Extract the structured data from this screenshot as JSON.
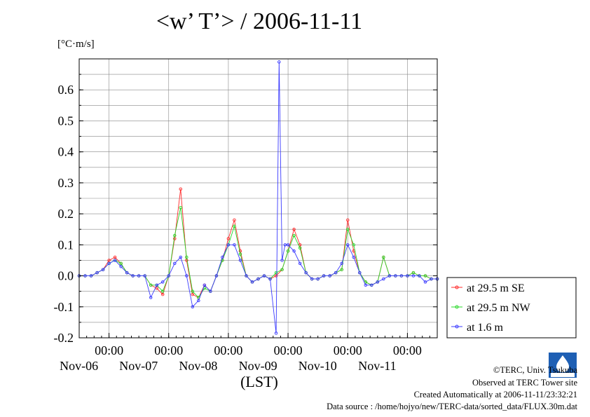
{
  "title": "<w’ T’> / 2006-11-11",
  "y_unit": "[°C·m/s]",
  "x_unit": "(LST)",
  "credits": {
    "line1": "©TERC, Univ. Tsukuba",
    "line2": "Observed at TERC Tower site",
    "line3": "Created Automatically at 2006-11-11/23:32:21",
    "line4": "Data source : /home/hojyo/new/TERC-data/sorted_data/FLUX.30m.dat"
  },
  "logo_text": "TERC",
  "colors": {
    "se": "#ff2a2a",
    "nw": "#2ad82a",
    "low": "#3a3aff",
    "grid": "#888888"
  },
  "chart_data": {
    "type": "line",
    "title": "<w’ T’> / 2006-11-11",
    "ylabel": "[°C·m/s]",
    "xlabel": "(LST)",
    "ylim": [
      -0.2,
      0.7
    ],
    "yticks": [
      -0.2,
      -0.1,
      0.0,
      0.1,
      0.2,
      0.3,
      0.4,
      0.5,
      0.6
    ],
    "y_tick_labels": [
      "-0.2",
      "-0.1",
      "0.0",
      "0.1",
      "0.2",
      "0.3",
      "0.4",
      "0.5",
      "0.6"
    ],
    "xlim": [
      0,
      6
    ],
    "x_units_note": "days from 2006-11-05 12:00",
    "x_major_ticks": [
      0.5,
      1.5,
      2.5,
      3.5,
      4.5,
      5.5
    ],
    "x_major_labels": [
      "00:00",
      "00:00",
      "00:00",
      "00:00",
      "00:00",
      "00:00"
    ],
    "x_day_positions": [
      0.5,
      1.5,
      2.5,
      3.5,
      4.5,
      5.5
    ],
    "x_day_labels": [
      "Nov-06",
      "Nov-07",
      "Nov-08",
      "Nov-09",
      "Nov-10",
      "Nov-11"
    ],
    "grid": true,
    "legend_position": "right",
    "series": [
      {
        "name": "at 29.5 m SE",
        "color": "#ff2a2a",
        "x": [
          0.0,
          0.1,
          0.2,
          0.3,
          0.4,
          0.5,
          0.6,
          0.7,
          0.8,
          0.9,
          1.0,
          1.1,
          1.2,
          1.3,
          1.4,
          1.5,
          1.6,
          1.7,
          1.8,
          1.9,
          2.0,
          2.1,
          2.2,
          2.3,
          2.4,
          2.5,
          2.6,
          2.7,
          2.8,
          2.9,
          3.0,
          3.1,
          3.2,
          3.3,
          3.4,
          3.5,
          3.6,
          3.7,
          3.8,
          3.9,
          4.0,
          4.1,
          4.2,
          4.3,
          4.4,
          4.5,
          4.6,
          4.7,
          4.8,
          4.9,
          5.0,
          5.1,
          5.2,
          5.3,
          5.4,
          5.5,
          5.6,
          5.7,
          5.8,
          5.9,
          6.0
        ],
        "y": [
          0.0,
          0.0,
          0.0,
          0.01,
          0.02,
          0.05,
          0.06,
          0.04,
          0.01,
          0.0,
          0.0,
          0.0,
          -0.03,
          -0.04,
          -0.06,
          0.0,
          0.12,
          0.28,
          0.05,
          -0.06,
          -0.07,
          -0.03,
          -0.05,
          0.0,
          0.05,
          0.12,
          0.18,
          0.08,
          0.0,
          -0.02,
          -0.01,
          0.0,
          -0.01,
          0.0,
          0.02,
          0.08,
          0.15,
          0.1,
          0.01,
          -0.01,
          -0.01,
          0.0,
          0.0,
          0.01,
          0.02,
          0.18,
          0.08,
          0.01,
          -0.02,
          -0.03,
          -0.02,
          0.06,
          0.0,
          0.0,
          0.0,
          0.0,
          0.01,
          0.0,
          0.0,
          -0.01,
          -0.01
        ]
      },
      {
        "name": "at 29.5 m NW",
        "color": "#2ad82a",
        "x": [
          0.0,
          0.1,
          0.2,
          0.3,
          0.4,
          0.5,
          0.6,
          0.7,
          0.8,
          0.9,
          1.0,
          1.1,
          1.2,
          1.3,
          1.4,
          1.5,
          1.6,
          1.7,
          1.8,
          1.9,
          2.0,
          2.1,
          2.2,
          2.3,
          2.4,
          2.5,
          2.6,
          2.7,
          2.8,
          2.9,
          3.0,
          3.1,
          3.2,
          3.3,
          3.4,
          3.5,
          3.6,
          3.7,
          3.8,
          3.9,
          4.0,
          4.1,
          4.2,
          4.3,
          4.4,
          4.5,
          4.6,
          4.7,
          4.8,
          4.9,
          5.0,
          5.1,
          5.2,
          5.3,
          5.4,
          5.5,
          5.6,
          5.7,
          5.8,
          5.9,
          6.0
        ],
        "y": [
          0.0,
          0.0,
          0.0,
          0.01,
          0.02,
          0.04,
          0.05,
          0.04,
          0.01,
          0.0,
          0.0,
          0.0,
          -0.03,
          -0.03,
          -0.05,
          0.0,
          0.13,
          0.22,
          0.06,
          -0.05,
          -0.07,
          -0.04,
          -0.05,
          0.0,
          0.05,
          0.1,
          0.16,
          0.07,
          0.0,
          -0.02,
          -0.01,
          0.0,
          -0.01,
          0.01,
          0.02,
          0.08,
          0.13,
          0.09,
          0.01,
          -0.01,
          -0.01,
          0.0,
          0.0,
          0.01,
          0.02,
          0.15,
          0.1,
          0.01,
          -0.02,
          -0.03,
          -0.02,
          0.06,
          0.0,
          0.0,
          0.0,
          0.0,
          0.01,
          0.0,
          0.0,
          -0.01,
          -0.01
        ]
      },
      {
        "name": "at 1.6 m",
        "color": "#3a3aff",
        "x": [
          0.0,
          0.1,
          0.2,
          0.3,
          0.4,
          0.5,
          0.6,
          0.7,
          0.8,
          0.9,
          1.0,
          1.1,
          1.2,
          1.3,
          1.4,
          1.5,
          1.6,
          1.7,
          1.8,
          1.9,
          2.0,
          2.1,
          2.2,
          2.3,
          2.4,
          2.5,
          2.6,
          2.7,
          2.8,
          2.9,
          3.0,
          3.1,
          3.2,
          3.3,
          3.35,
          3.4,
          3.45,
          3.5,
          3.6,
          3.7,
          3.8,
          3.9,
          4.0,
          4.1,
          4.2,
          4.3,
          4.4,
          4.5,
          4.6,
          4.7,
          4.8,
          4.9,
          5.0,
          5.1,
          5.2,
          5.3,
          5.4,
          5.5,
          5.6,
          5.7,
          5.8,
          5.9,
          6.0
        ],
        "y": [
          0.0,
          0.0,
          0.0,
          0.01,
          0.02,
          0.04,
          0.05,
          0.03,
          0.01,
          0.0,
          0.0,
          0.0,
          -0.07,
          -0.03,
          -0.02,
          0.0,
          0.04,
          0.06,
          0.0,
          -0.1,
          -0.08,
          -0.03,
          -0.05,
          0.0,
          0.06,
          0.1,
          0.1,
          0.05,
          0.0,
          -0.02,
          -0.01,
          0.0,
          -0.01,
          -0.185,
          0.69,
          0.05,
          0.1,
          0.1,
          0.08,
          0.04,
          0.01,
          -0.01,
          -0.01,
          0.0,
          0.0,
          0.01,
          0.04,
          0.1,
          0.06,
          0.01,
          -0.03,
          -0.03,
          -0.02,
          -0.01,
          0.0,
          0.0,
          0.0,
          0.0,
          0.0,
          0.0,
          -0.02,
          -0.01,
          -0.01
        ]
      }
    ]
  }
}
